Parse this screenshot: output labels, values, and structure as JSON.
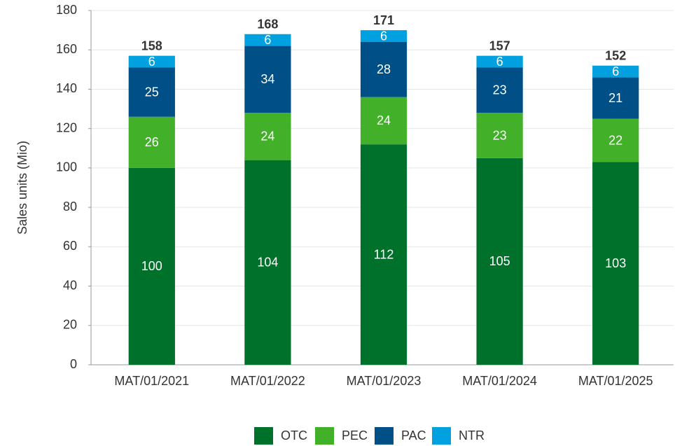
{
  "chart_data": {
    "type": "stacked_bar",
    "ylabel": "Sales units (Mio)",
    "categories": [
      "MAT/01/2021",
      "MAT/01/2022",
      "MAT/01/2023",
      "MAT/01/2024",
      "MAT/01/2025"
    ],
    "series": [
      {
        "name": "OTC",
        "color": "#00712a",
        "values": [
          100,
          104,
          112,
          105,
          103
        ]
      },
      {
        "name": "PEC",
        "color": "#43b02a",
        "values": [
          26,
          24,
          24,
          23,
          22
        ]
      },
      {
        "name": "PAC",
        "color": "#004f86",
        "values": [
          25,
          34,
          28,
          23,
          21
        ]
      },
      {
        "name": "NTR",
        "color": "#00a1de",
        "values": [
          6,
          6,
          6,
          6,
          6
        ]
      }
    ],
    "totals": [
      158,
      168,
      171,
      157,
      152
    ],
    "ylim": [
      0,
      180
    ],
    "yticks": [
      0,
      20,
      40,
      60,
      80,
      100,
      120,
      140,
      160,
      180
    ],
    "grid": true,
    "legend": "bottom"
  }
}
